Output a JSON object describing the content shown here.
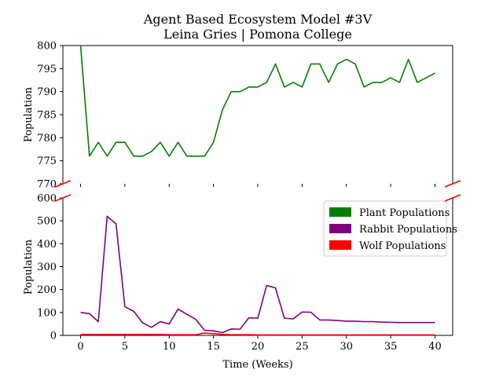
{
  "chart_data": {
    "type": "line",
    "title": "Agent Based Ecosystem Model #3V",
    "subtitle": "Leina Gries | Pomona College",
    "xlabel": "Time (Weeks)",
    "ylabel_top": "Population",
    "ylabel_bottom": "Population",
    "x": [
      0,
      1,
      2,
      3,
      4,
      5,
      6,
      7,
      8,
      9,
      10,
      11,
      12,
      13,
      14,
      15,
      16,
      17,
      18,
      19,
      20,
      21,
      22,
      23,
      24,
      25,
      26,
      27,
      28,
      29,
      30,
      31,
      32,
      33,
      34,
      35,
      36,
      37,
      38,
      39,
      40
    ],
    "x_ticks": [
      0,
      5,
      10,
      15,
      20,
      25,
      30,
      35,
      40
    ],
    "xlim": [
      -2,
      42
    ],
    "broken_y_axis": true,
    "top_panel": {
      "ylim": [
        770,
        800
      ],
      "y_ticks": [
        770,
        775,
        780,
        785,
        790,
        795,
        800
      ],
      "series": [
        "plant"
      ]
    },
    "bottom_panel": {
      "ylim": [
        0,
        600
      ],
      "y_ticks": [
        0,
        100,
        200,
        300,
        400,
        500,
        600
      ],
      "series": [
        "rabbit",
        "wolf"
      ]
    },
    "series": [
      {
        "key": "plant",
        "name": "Plant Populations",
        "color": "#008000",
        "values": [
          800,
          776,
          779,
          776,
          779,
          779,
          776,
          776,
          777,
          779,
          776,
          779,
          776,
          776,
          776,
          779,
          786,
          790,
          790,
          791,
          791,
          792,
          796,
          791,
          792,
          791,
          796,
          796,
          792,
          796,
          797,
          796,
          791,
          792,
          792,
          793,
          792,
          797,
          792,
          793,
          794
        ]
      },
      {
        "key": "rabbit",
        "name": "Rabbit Populations",
        "color": "#800080",
        "values": [
          100,
          95,
          60,
          520,
          487,
          125,
          105,
          55,
          35,
          60,
          50,
          115,
          92,
          70,
          22,
          20,
          12,
          28,
          27,
          77,
          75,
          218,
          207,
          75,
          72,
          102,
          101,
          67,
          67,
          65,
          62,
          62,
          60,
          60,
          58,
          57,
          56,
          56,
          56,
          56,
          56
        ]
      },
      {
        "key": "wolf",
        "name": "Wolf Populations",
        "color": "#ff0000",
        "values": [
          4,
          4,
          4,
          4,
          4,
          4,
          4,
          4,
          4,
          4,
          3,
          3,
          3,
          3,
          10,
          8,
          4,
          3,
          3,
          3,
          2,
          2,
          2,
          2,
          2,
          2,
          2,
          2,
          2,
          2,
          2,
          2,
          2,
          2,
          2,
          2,
          2,
          2,
          2,
          2,
          2
        ]
      }
    ],
    "legend_position": "upper right of lower panel",
    "grid": false
  }
}
